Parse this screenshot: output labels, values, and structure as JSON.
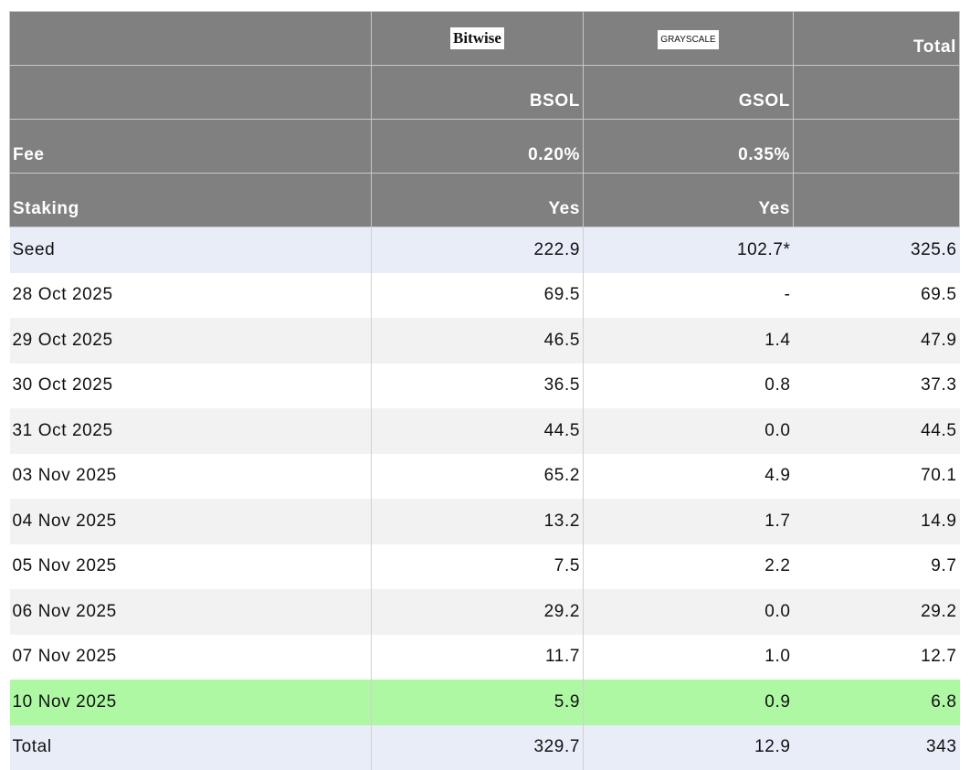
{
  "table": {
    "header": [
      [
        null,
        "Bitwise",
        "GRAYSCALE",
        "Total"
      ],
      [
        null,
        "BSOL",
        "GSOL",
        null
      ],
      [
        "Fee",
        "0.20%",
        "0.35%",
        null
      ],
      [
        "Staking",
        "Yes",
        "Yes",
        null
      ]
    ],
    "rows": [
      [
        "Seed",
        "222.9",
        "102.7*",
        "325.6"
      ],
      [
        "28 Oct 2025",
        "69.5",
        "-",
        "69.5"
      ],
      [
        "29 Oct 2025",
        "46.5",
        "1.4",
        "47.9"
      ],
      [
        "30 Oct 2025",
        "36.5",
        "0.8",
        "37.3"
      ],
      [
        "31 Oct 2025",
        "44.5",
        "0.0",
        "44.5"
      ],
      [
        "03 Nov 2025",
        "65.2",
        "4.9",
        "70.1"
      ],
      [
        "04 Nov 2025",
        "13.2",
        "1.7",
        "14.9"
      ],
      [
        "05 Nov 2025",
        "7.5",
        "2.2",
        "9.7"
      ],
      [
        "06 Nov 2025",
        "29.2",
        "0.0",
        "29.2"
      ],
      [
        "07 Nov 2025",
        "11.7",
        "1.0",
        "12.7"
      ],
      [
        "10 Nov 2025",
        "5.9",
        "0.9",
        "6.8"
      ],
      [
        "Total",
        "329.7",
        "12.9",
        "343"
      ]
    ]
  }
}
